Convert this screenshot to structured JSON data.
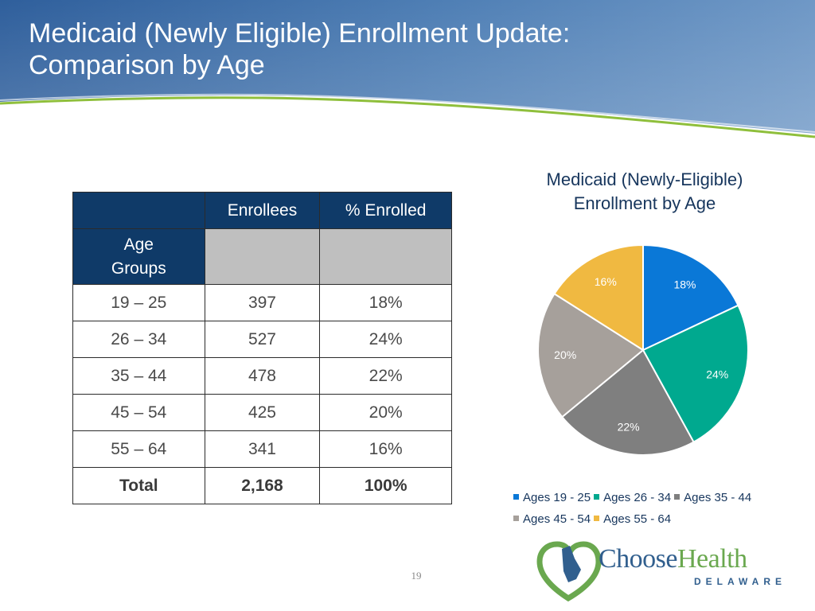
{
  "slide": {
    "title_line1": "Medicaid (Newly Eligible) Enrollment Update:",
    "title_line2": "Comparison by Age",
    "page_number": "19"
  },
  "table": {
    "headers": [
      "",
      "Enrollees",
      "% Enrolled"
    ],
    "subheader_label_line1": "Age",
    "subheader_label_line2": "Groups",
    "rows": [
      {
        "group": "19 – 25",
        "enrollees": "397",
        "percent": "18%"
      },
      {
        "group": "26 – 34",
        "enrollees": "527",
        "percent": "24%"
      },
      {
        "group": "35 – 44",
        "enrollees": "478",
        "percent": "22%"
      },
      {
        "group": "45 – 54",
        "enrollees": "425",
        "percent": "20%"
      },
      {
        "group": "55 – 64",
        "enrollees": "341",
        "percent": "16%"
      }
    ],
    "total": {
      "label": "Total",
      "enrollees": "2,168",
      "percent": "100%"
    }
  },
  "chart_data": {
    "type": "pie",
    "title_line1": "Medicaid (Newly-Eligible)",
    "title_line2": "Enrollment by Age",
    "legend_position": "bottom",
    "slices": [
      {
        "label": "Ages 19 - 25",
        "value": 18,
        "data_label": "18%",
        "color": "#0a78d7",
        "label_color": "#ffffff"
      },
      {
        "label": "Ages 26 - 34",
        "value": 24,
        "data_label": "24%",
        "color": "#00a98f",
        "label_color": "#ffffff"
      },
      {
        "label": "Ages 35 - 44",
        "value": 22,
        "data_label": "22%",
        "color": "#7f7f7f",
        "label_color": "#ffffff"
      },
      {
        "label": "Ages 45 - 54",
        "value": 20,
        "data_label": "20%",
        "color": "#a6a09b",
        "label_color": "#ffffff"
      },
      {
        "label": "Ages 55 - 64",
        "value": 16,
        "data_label": "16%",
        "color": "#f0b941",
        "label_color": "#ffffff"
      }
    ]
  },
  "logo": {
    "word1": "Choose",
    "word2": "Health",
    "sub": "DELAWARE"
  }
}
